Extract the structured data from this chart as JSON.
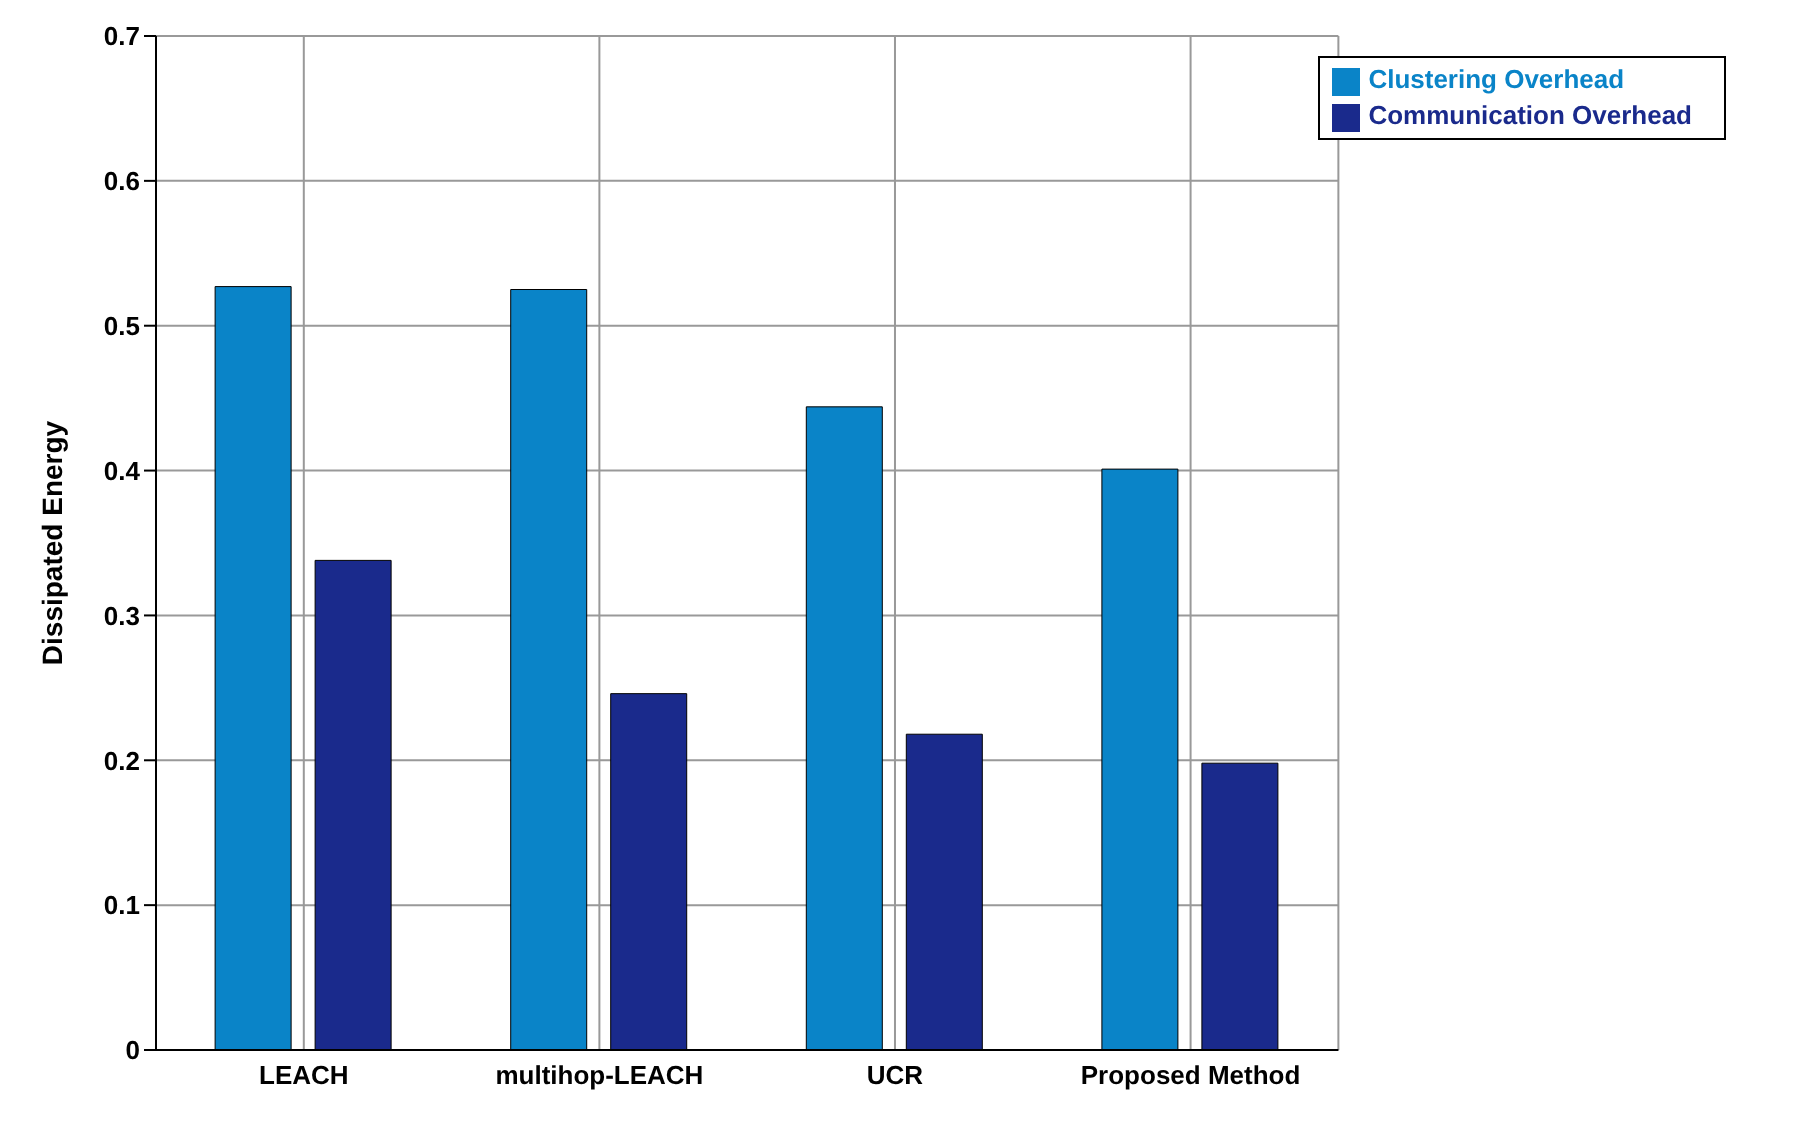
{
  "chart_data": {
    "type": "bar",
    "ylabel": "Dissipated Energy",
    "categories": [
      "LEACH",
      "multihop-LEACH",
      "UCR",
      "Proposed Method"
    ],
    "series": [
      {
        "name": "Clustering Overhead",
        "color": "#0a84c8",
        "values": [
          0.527,
          0.525,
          0.444,
          0.401
        ]
      },
      {
        "name": "Communication Overhead",
        "color": "#1a2a8c",
        "values": [
          0.338,
          0.246,
          0.218,
          0.198
        ]
      }
    ],
    "ylim": [
      0,
      0.7
    ],
    "yticks": [
      0,
      0.1,
      0.2,
      0.3,
      0.4,
      0.5,
      0.6,
      0.7
    ],
    "grid": true,
    "legend": "top right"
  }
}
